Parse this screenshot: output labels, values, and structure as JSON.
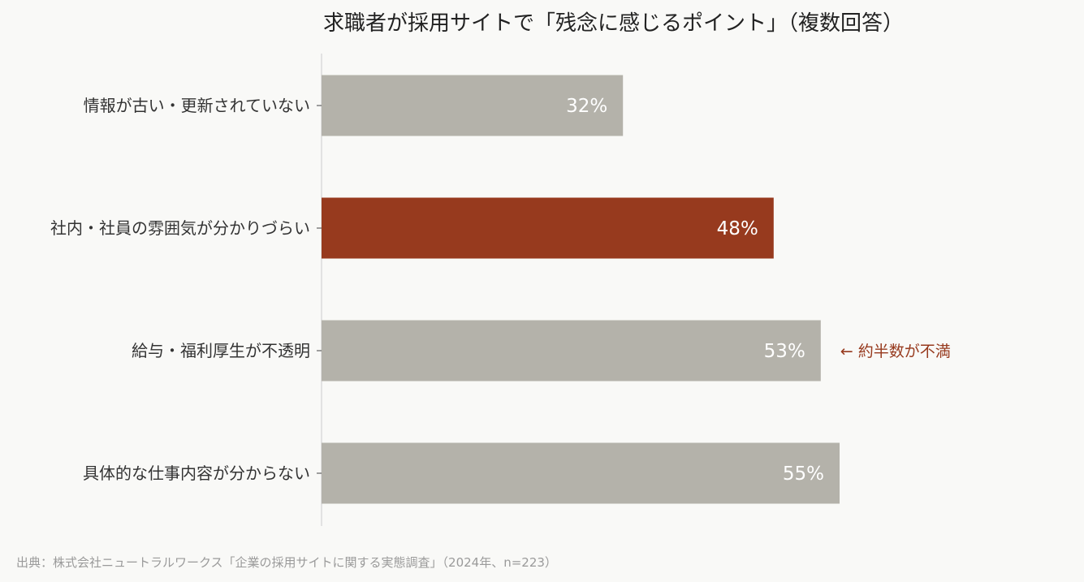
{
  "chart_data": {
    "type": "bar",
    "orientation": "horizontal",
    "title": "求職者が採用サイトで「残念に感じるポイント」（複数回答）",
    "categories": [
      "情報が古い・更新されていない",
      "社内・社員の雰囲気が分かりづらい",
      "給与・福利厚生が不透明",
      "具体的な仕事内容が分からない"
    ],
    "values": [
      32,
      48,
      53,
      55
    ],
    "value_labels": [
      "32%",
      "48%",
      "53%",
      "55%"
    ],
    "highlight_index": 1,
    "xlim": [
      0,
      70
    ],
    "grid": false,
    "annotation": {
      "text": "← 約半数が不満",
      "category_index": 2
    },
    "source": "出典：株式会社ニュートラルワークス「企業の採用サイトに関する実態調査」（2024年、n=223）"
  },
  "colors": {
    "background": "#f9f9f7",
    "bar": "#b4b2aa",
    "highlight": "#973a1e",
    "annotation": "#973a1e",
    "axis": "#cccccc"
  }
}
